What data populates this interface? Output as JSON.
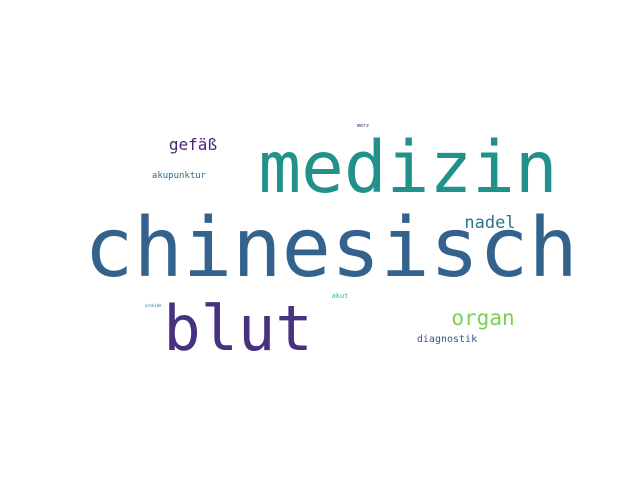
{
  "word_cloud": {
    "words": [
      {
        "id": "chinesisch",
        "text": "chinesisch",
        "color": "#33638d"
      },
      {
        "id": "medizin",
        "text": "medizin",
        "color": "#21918c"
      },
      {
        "id": "blut",
        "text": "blut",
        "color": "#46327e"
      },
      {
        "id": "organ",
        "text": "organ",
        "color": "#7ad151"
      },
      {
        "id": "nadel",
        "text": "nadel",
        "color": "#2c728e"
      },
      {
        "id": "gefaess",
        "text": "gefäß",
        "color": "#482576"
      },
      {
        "id": "akupunktur",
        "text": "akupunktur",
        "color": "#31688e"
      },
      {
        "id": "diagnostik",
        "text": "diagnostik",
        "color": "#3b528b"
      },
      {
        "id": "akut",
        "text": "akut",
        "color": "#3bbb75"
      },
      {
        "id": "merz",
        "text": "merz",
        "color": "#481a6c"
      },
      {
        "id": "scheide",
        "text": "scheide",
        "color": "#2a788e"
      }
    ]
  }
}
